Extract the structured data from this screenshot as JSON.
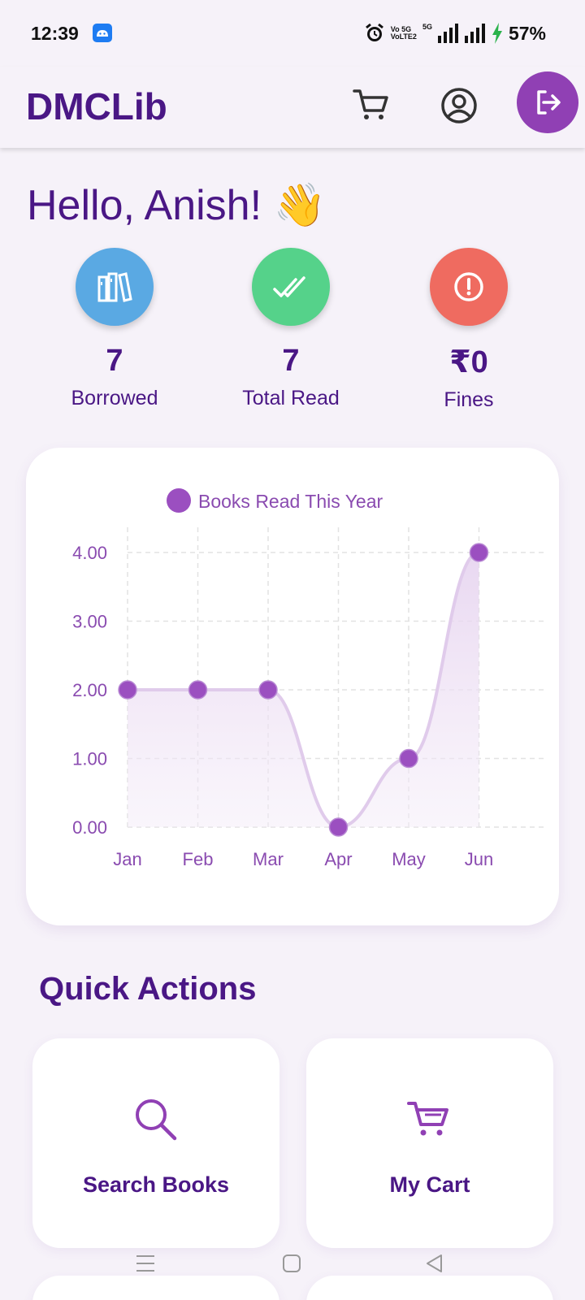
{
  "status_bar": {
    "time": "12:39",
    "network_label_1": "Vo 5G",
    "network_label_2": "VoLTE2",
    "network_5g": "5G",
    "battery": "57%",
    "icons": [
      "android-app-icon",
      "alarm-icon",
      "signal-icon",
      "charging-icon"
    ]
  },
  "header": {
    "brand": "DMCLib",
    "icons": [
      "cart-icon",
      "profile-icon",
      "logout-icon"
    ]
  },
  "greeting": "Hello, Anish! 👋",
  "stats": [
    {
      "value": "7",
      "label": "Borrowed",
      "color": "#5aa9e3",
      "icon": "books-icon"
    },
    {
      "value": "7",
      "label": "Total Read",
      "color": "#55d28a",
      "icon": "double-check-icon"
    },
    {
      "value": "₹0",
      "label": "Fines",
      "color": "#ef6b60",
      "icon": "alert-icon"
    }
  ],
  "chart_data": {
    "type": "line",
    "categories": [
      "Jan",
      "Feb",
      "Mar",
      "Apr",
      "May",
      "Jun"
    ],
    "series": [
      {
        "name": "Books Read This Year",
        "values": [
          2,
          2,
          2,
          0,
          1,
          4
        ],
        "color": "#9b4fc0"
      }
    ],
    "y_ticks": [
      "0.00",
      "1.00",
      "2.00",
      "3.00",
      "4.00"
    ],
    "ylim": [
      0,
      4
    ],
    "grid": true,
    "legend": "top-center",
    "fill": true,
    "smooth": true
  },
  "quick_actions": {
    "title": "Quick Actions",
    "items": [
      {
        "label": "Search Books",
        "icon": "search-icon"
      },
      {
        "label": "My Cart",
        "icon": "cart-icon"
      }
    ]
  },
  "nav": {
    "icons": [
      "menu-icon",
      "home-icon",
      "back-icon"
    ]
  }
}
